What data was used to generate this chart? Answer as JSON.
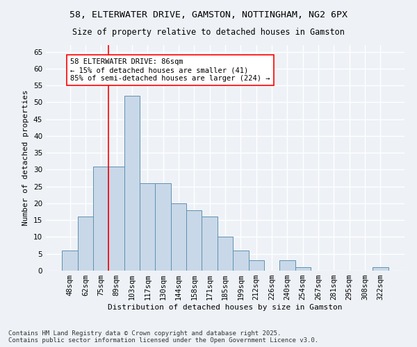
{
  "title_line1": "58, ELTERWATER DRIVE, GAMSTON, NOTTINGHAM, NG2 6PX",
  "title_line2": "Size of property relative to detached houses in Gamston",
  "xlabel": "Distribution of detached houses by size in Gamston",
  "ylabel": "Number of detached properties",
  "bar_labels": [
    "48sqm",
    "62sqm",
    "75sqm",
    "89sqm",
    "103sqm",
    "117sqm",
    "130sqm",
    "144sqm",
    "158sqm",
    "171sqm",
    "185sqm",
    "199sqm",
    "212sqm",
    "226sqm",
    "240sqm",
    "254sqm",
    "267sqm",
    "281sqm",
    "295sqm",
    "308sqm",
    "322sqm"
  ],
  "bar_values": [
    6,
    16,
    31,
    31,
    52,
    26,
    26,
    20,
    18,
    16,
    10,
    6,
    3,
    0,
    3,
    1,
    0,
    0,
    0,
    0,
    1
  ],
  "bar_color": "#c8d8e8",
  "bar_edge_color": "#6090b0",
  "vertical_line_x": 2.5,
  "annotation_text": "58 ELTERWATER DRIVE: 86sqm\n← 15% of detached houses are smaller (41)\n85% of semi-detached houses are larger (224) →",
  "annotation_box_color": "white",
  "annotation_box_edge_color": "red",
  "ylim": [
    0,
    67
  ],
  "yticks": [
    0,
    5,
    10,
    15,
    20,
    25,
    30,
    35,
    40,
    45,
    50,
    55,
    60,
    65
  ],
  "background_color": "#eef2f7",
  "grid_color": "white",
  "footer_text": "Contains HM Land Registry data © Crown copyright and database right 2025.\nContains public sector information licensed under the Open Government Licence v3.0.",
  "title_fontsize": 9.5,
  "subtitle_fontsize": 8.5,
  "axis_label_fontsize": 8,
  "tick_fontsize": 7.5,
  "annotation_fontsize": 7.5,
  "footer_fontsize": 6.5
}
